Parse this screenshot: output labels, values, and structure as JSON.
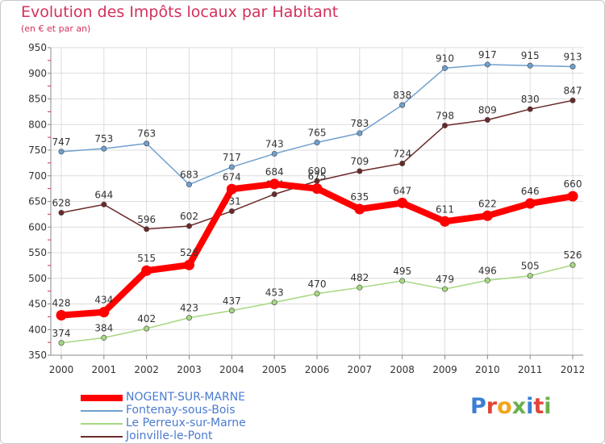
{
  "header": {
    "title": "Evolution des Impôts locaux par Habitant",
    "subtitle": "(en € et par an)"
  },
  "logo": {
    "text": "Proxiti",
    "colors": [
      "#3a7fd5",
      "#e0453a",
      "#f2a51a",
      "#6ab04c",
      "#3a7fd5",
      "#e0453a",
      "#6ab04c"
    ]
  },
  "chart_data": {
    "type": "line",
    "title": "Evolution des Impôts locaux par Habitant",
    "subtitle": "(en € et par an)",
    "x": [
      "2000",
      "2001",
      "2002",
      "2003",
      "2004",
      "2005",
      "2006",
      "2007",
      "2008",
      "2009",
      "2010",
      "2011",
      "2012"
    ],
    "ylim": [
      350,
      950
    ],
    "yticks": [
      350,
      400,
      450,
      500,
      550,
      600,
      650,
      700,
      750,
      800,
      850,
      900,
      950
    ],
    "grid": true,
    "legend_position": "bottom-left",
    "series": [
      {
        "name": "NOGENT-SUR-MARNE",
        "color": "#ff0000",
        "values": [
          428,
          434,
          515,
          526,
          674,
          684,
          675,
          635,
          647,
          611,
          622,
          646,
          660
        ]
      },
      {
        "name": "Fontenay-sous-Bois",
        "color": "#6fa0cf",
        "values": [
          747,
          753,
          763,
          683,
          717,
          743,
          765,
          783,
          838,
          910,
          917,
          915,
          913
        ]
      },
      {
        "name": "Le Perreux-sur-Marne",
        "color": "#a6d880",
        "values": [
          374,
          384,
          402,
          423,
          437,
          453,
          470,
          482,
          495,
          479,
          496,
          505,
          526
        ]
      },
      {
        "name": "Joinville-le-Pont",
        "color": "#6b2a2a",
        "values": [
          628,
          644,
          596,
          602,
          631,
          664,
          690,
          709,
          724,
          798,
          809,
          830,
          847
        ]
      }
    ]
  }
}
